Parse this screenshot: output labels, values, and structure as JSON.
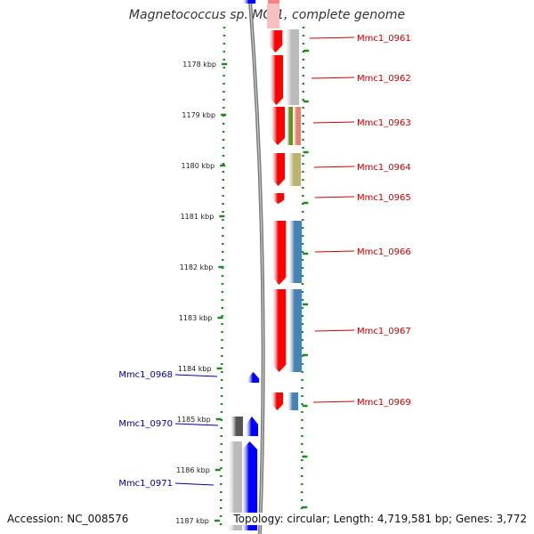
{
  "title": "Magnetococcus sp. MC-1, complete genome",
  "accession": "Accession: NC_008576",
  "topology": "Topology: circular; Length: 4,719,581 bp; Genes: 3,772",
  "ruler": {
    "labels": [
      "1178 kbp",
      "1179 kbp",
      "1180 kbp",
      "1181 kbp",
      "1182 kbp",
      "1183 kbp",
      "1184 kbp",
      "1185 kbp",
      "1186 kbp",
      "1187 kbp"
    ]
  },
  "colors": {
    "forward_gene": "#ff0000",
    "reverse_gene": "#0000ff",
    "forward_label": "#cc0000",
    "reverse_label": "#0000aa",
    "ruler": "#228822",
    "backbone": "#888888",
    "feature_gray": "#bbbbbb",
    "feature_darkgray": "#555555",
    "feature_olive": "#6b8e23",
    "feature_salmon": "#e87f6f",
    "feature_khaki": "#b9b56e",
    "feature_steelblue": "#4682b4"
  },
  "genes": [
    {
      "label": "Mmc1_0961",
      "strand": "forward"
    },
    {
      "label": "Mmc1_0962",
      "strand": "forward"
    },
    {
      "label": "Mmc1_0963",
      "strand": "forward"
    },
    {
      "label": "Mmc1_0964",
      "strand": "forward"
    },
    {
      "label": "Mmc1_0965",
      "strand": "forward"
    },
    {
      "label": "Mmc1_0966",
      "strand": "forward"
    },
    {
      "label": "Mmc1_0967",
      "strand": "forward"
    },
    {
      "label": "Mmc1_0969",
      "strand": "forward"
    },
    {
      "label": "Mmc1_0968",
      "strand": "reverse"
    },
    {
      "label": "Mmc1_0970",
      "strand": "reverse"
    },
    {
      "label": "Mmc1_0971",
      "strand": "reverse"
    }
  ]
}
